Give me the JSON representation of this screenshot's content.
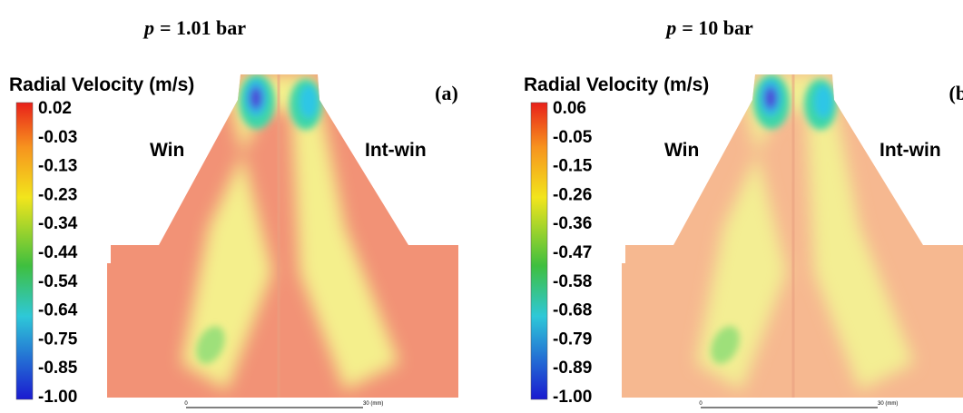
{
  "panels": [
    {
      "header": {
        "variable": "p",
        "value": "= 1.01 bar"
      },
      "colorbar_label": "Radial Velocity (m/s)",
      "panel_label": "(a)",
      "ticks": [
        "0.02",
        "-0.03",
        "-0.13",
        "-0.23",
        "-0.34",
        "-0.44",
        "-0.54",
        "-0.64",
        "-0.75",
        "-0.85",
        "-1.00"
      ],
      "annotations": [
        "Win",
        "Int-win"
      ],
      "scale_bar": [
        "0",
        "30 (mm)"
      ]
    },
    {
      "header": {
        "variable": "p",
        "value": "= 10 bar"
      },
      "colorbar_label": "Radial Velocity (m/s)",
      "panel_label": "(b)",
      "ticks": [
        "0.06",
        "-0.05",
        "-0.15",
        "-0.26",
        "-0.36",
        "-0.47",
        "-0.58",
        "-0.68",
        "-0.79",
        "-0.89",
        "-1.00"
      ],
      "annotations": [
        "Win",
        "Int-win"
      ],
      "scale_bar": [
        "0",
        "30 (mm)"
      ]
    }
  ]
}
